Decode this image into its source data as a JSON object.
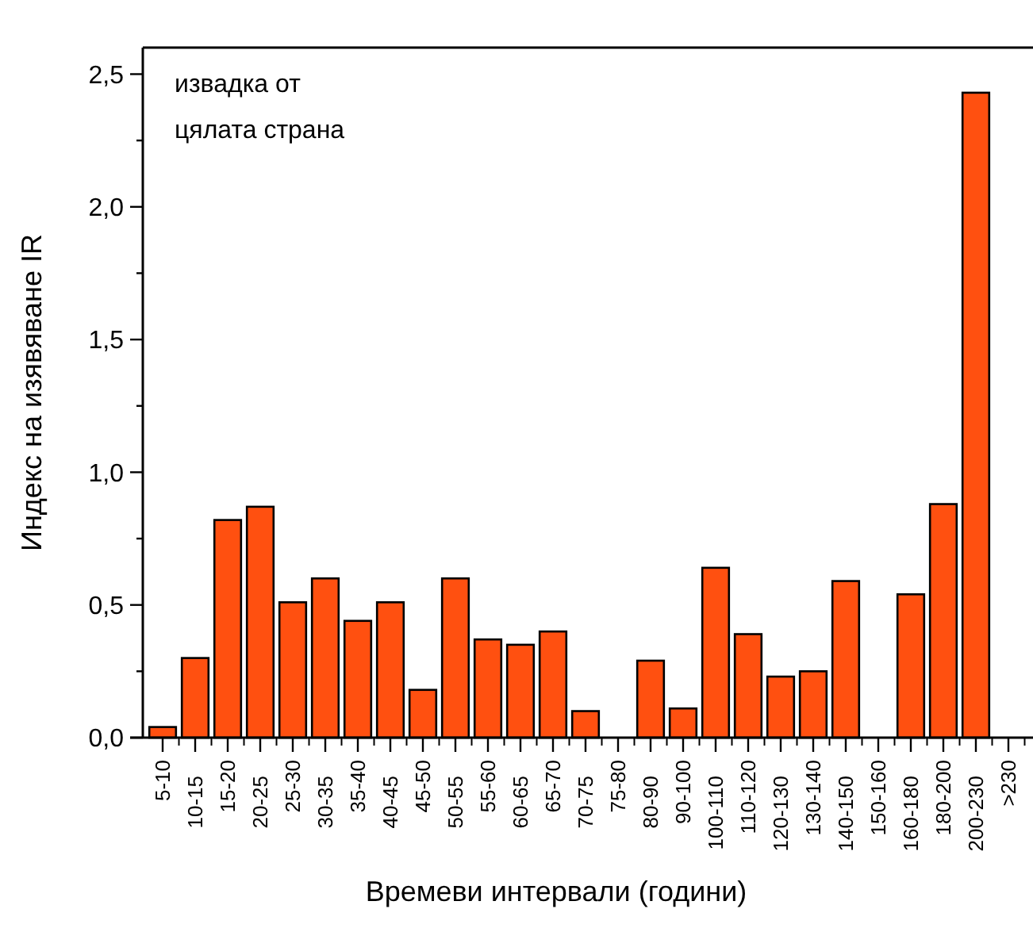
{
  "chart_data": {
    "type": "bar",
    "xlabel": "Времеви интервали (години)",
    "ylabel": "Индекс на изявяване IR",
    "annotations": [
      "извадка от\nцялата страна"
    ],
    "categories": [
      "5-10",
      "10-15",
      "15-20",
      "20-25",
      "25-30",
      "30-35",
      "35-40",
      "40-45",
      "45-50",
      "50-55",
      "55-60",
      "60-65",
      "65-70",
      "70-75",
      "75-80",
      "80-90",
      "90-100",
      "100-110",
      "110-120",
      "120-130",
      "130-140",
      "140-150",
      "150-160",
      "160-180",
      "180-200",
      "200-230",
      ">230"
    ],
    "values": [
      0.04,
      0.3,
      0.82,
      0.87,
      0.51,
      0.6,
      0.44,
      0.51,
      0.18,
      0.6,
      0.37,
      0.35,
      0.4,
      0.1,
      0,
      0.29,
      0.11,
      0.64,
      0.39,
      0.23,
      0.25,
      0.59,
      0,
      0.54,
      0.88,
      2.43,
      0
    ],
    "color": "#ff5010",
    "ylim": [
      0,
      2.6
    ],
    "yticks": [
      {
        "value": 0,
        "label": "0,0"
      },
      {
        "value": 0.25,
        "label": null
      },
      {
        "value": 0.5,
        "label": "0,5"
      },
      {
        "value": 0.75,
        "label": null
      },
      {
        "value": 1,
        "label": "1,0"
      },
      {
        "value": 1.25,
        "label": null
      },
      {
        "value": 1.5,
        "label": "1,5"
      },
      {
        "value": 1.75,
        "label": null
      },
      {
        "value": 2,
        "label": "2,0"
      },
      {
        "value": 2.25,
        "label": null
      },
      {
        "value": 2.5,
        "label": "2,5"
      }
    ],
    "grid": false
  }
}
